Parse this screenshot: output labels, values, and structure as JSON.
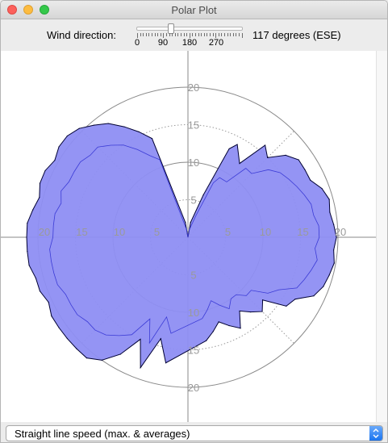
{
  "window": {
    "title": "Polar Plot"
  },
  "controls": {
    "wind_label": "Wind direction:",
    "wind_value": "117 degrees (ESE)",
    "slider": {
      "min": 0,
      "max": 360,
      "value": 117,
      "tick_labels": [
        "0",
        "90",
        "180",
        "270"
      ]
    }
  },
  "plot": {
    "ring_labels": [
      "5",
      "10",
      "15",
      "20"
    ],
    "axis_labels": {
      "left": [
        "20",
        "15",
        "10",
        "5"
      ],
      "right": [
        "5",
        "10",
        "15",
        "20"
      ],
      "down": [
        "5",
        "10",
        "15",
        "20"
      ],
      "up": [
        "5",
        "10",
        "15",
        "20"
      ]
    },
    "fill_color": "#8e8ef3",
    "line_color": "#000033",
    "average_color": "#3b3bd6"
  },
  "chart_data": {
    "type": "area",
    "polar": true,
    "r_range": [
      0,
      20
    ],
    "rings": [
      5,
      10,
      15,
      20
    ],
    "grid": true,
    "series": [
      {
        "name": "Straight line speed (max. & averages)",
        "theta_deg": [
          10,
          20,
          25,
          28,
          35,
          40,
          45,
          50,
          55,
          60,
          65,
          70,
          75,
          80,
          85,
          90,
          95,
          100,
          105,
          110,
          115,
          120,
          125,
          130,
          135,
          140,
          145,
          150,
          155,
          160,
          165,
          170,
          190,
          195,
          200,
          205,
          210,
          215,
          220,
          225,
          230,
          235,
          240,
          245,
          250,
          255,
          260,
          265,
          270,
          275,
          280,
          285,
          290,
          295,
          300,
          305,
          310,
          315,
          320,
          325,
          330,
          335,
          340,
          350
        ],
        "max_r": [
          2,
          6,
          13,
          14,
          12,
          16,
          15,
          17,
          18,
          18,
          18,
          19,
          19.5,
          19.2,
          19.5,
          19.8,
          19.5,
          19.8,
          19.5,
          19.2,
          18.5,
          16.5,
          16,
          13,
          14,
          13,
          12,
          14,
          13,
          12,
          13,
          14,
          17,
          14,
          18.5,
          15,
          18,
          20,
          21,
          21,
          21,
          21,
          21,
          20.5,
          21,
          21,
          21.5,
          21.5,
          21.5,
          21.5,
          21,
          20.5,
          21,
          21,
          20.5,
          21,
          21,
          20.5,
          19.5,
          18.5,
          17,
          15.5,
          14,
          2
        ],
        "avg_r": [
          1,
          3,
          8,
          9,
          9,
          12,
          12,
          14,
          15,
          15.5,
          16,
          16.5,
          17,
          17,
          17.5,
          17.5,
          17,
          17.5,
          17,
          16.5,
          16,
          14,
          13,
          11,
          11,
          10,
          10,
          11,
          10,
          9,
          10,
          11,
          13,
          11,
          15,
          12,
          15,
          16,
          17,
          17.5,
          17.5,
          18,
          18,
          18,
          18.5,
          18.5,
          18.5,
          18.5,
          18,
          18,
          18,
          17.5,
          18,
          17.5,
          17.5,
          17.5,
          17,
          17,
          16,
          15,
          13.5,
          12,
          11,
          1
        ]
      }
    ]
  },
  "selector": {
    "value": "Straight line speed (max. & averages)"
  }
}
